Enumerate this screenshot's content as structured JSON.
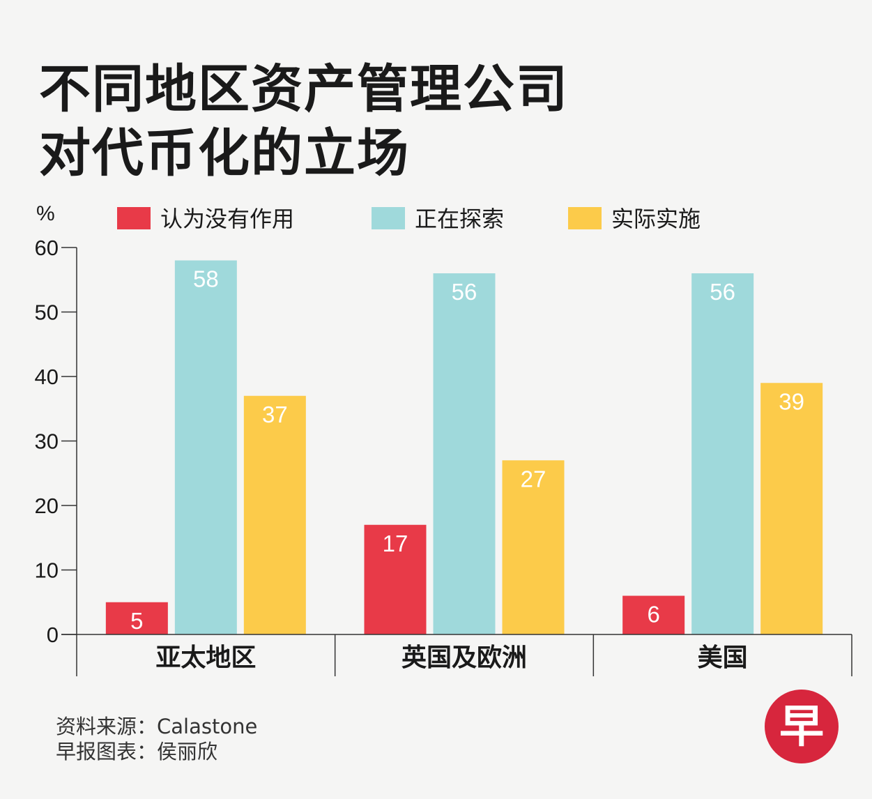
{
  "title_lines": [
    "不同地区资产管理公司",
    "对代币化的立场"
  ],
  "chart_data": {
    "type": "bar",
    "ylabel": "%",
    "ylim": [
      0,
      60
    ],
    "yticks": [
      0,
      10,
      20,
      30,
      40,
      50,
      60
    ],
    "categories": [
      "亚太地区",
      "英国及欧洲",
      "美国"
    ],
    "series": [
      {
        "name": "认为没有作用",
        "color": "#e83a48",
        "values": [
          5,
          17,
          6
        ]
      },
      {
        "name": "正在探索",
        "color": "#9fd9db",
        "values": [
          58,
          56,
          56
        ]
      },
      {
        "name": "实际实施",
        "color": "#fccb4a",
        "values": [
          37,
          27,
          39
        ]
      }
    ],
    "legend": "top"
  },
  "footer": {
    "source": "资料来源：Calastone",
    "credit": "早报图表：侯丽欣"
  },
  "logo": {
    "char": "早",
    "color": "#d7263d"
  }
}
